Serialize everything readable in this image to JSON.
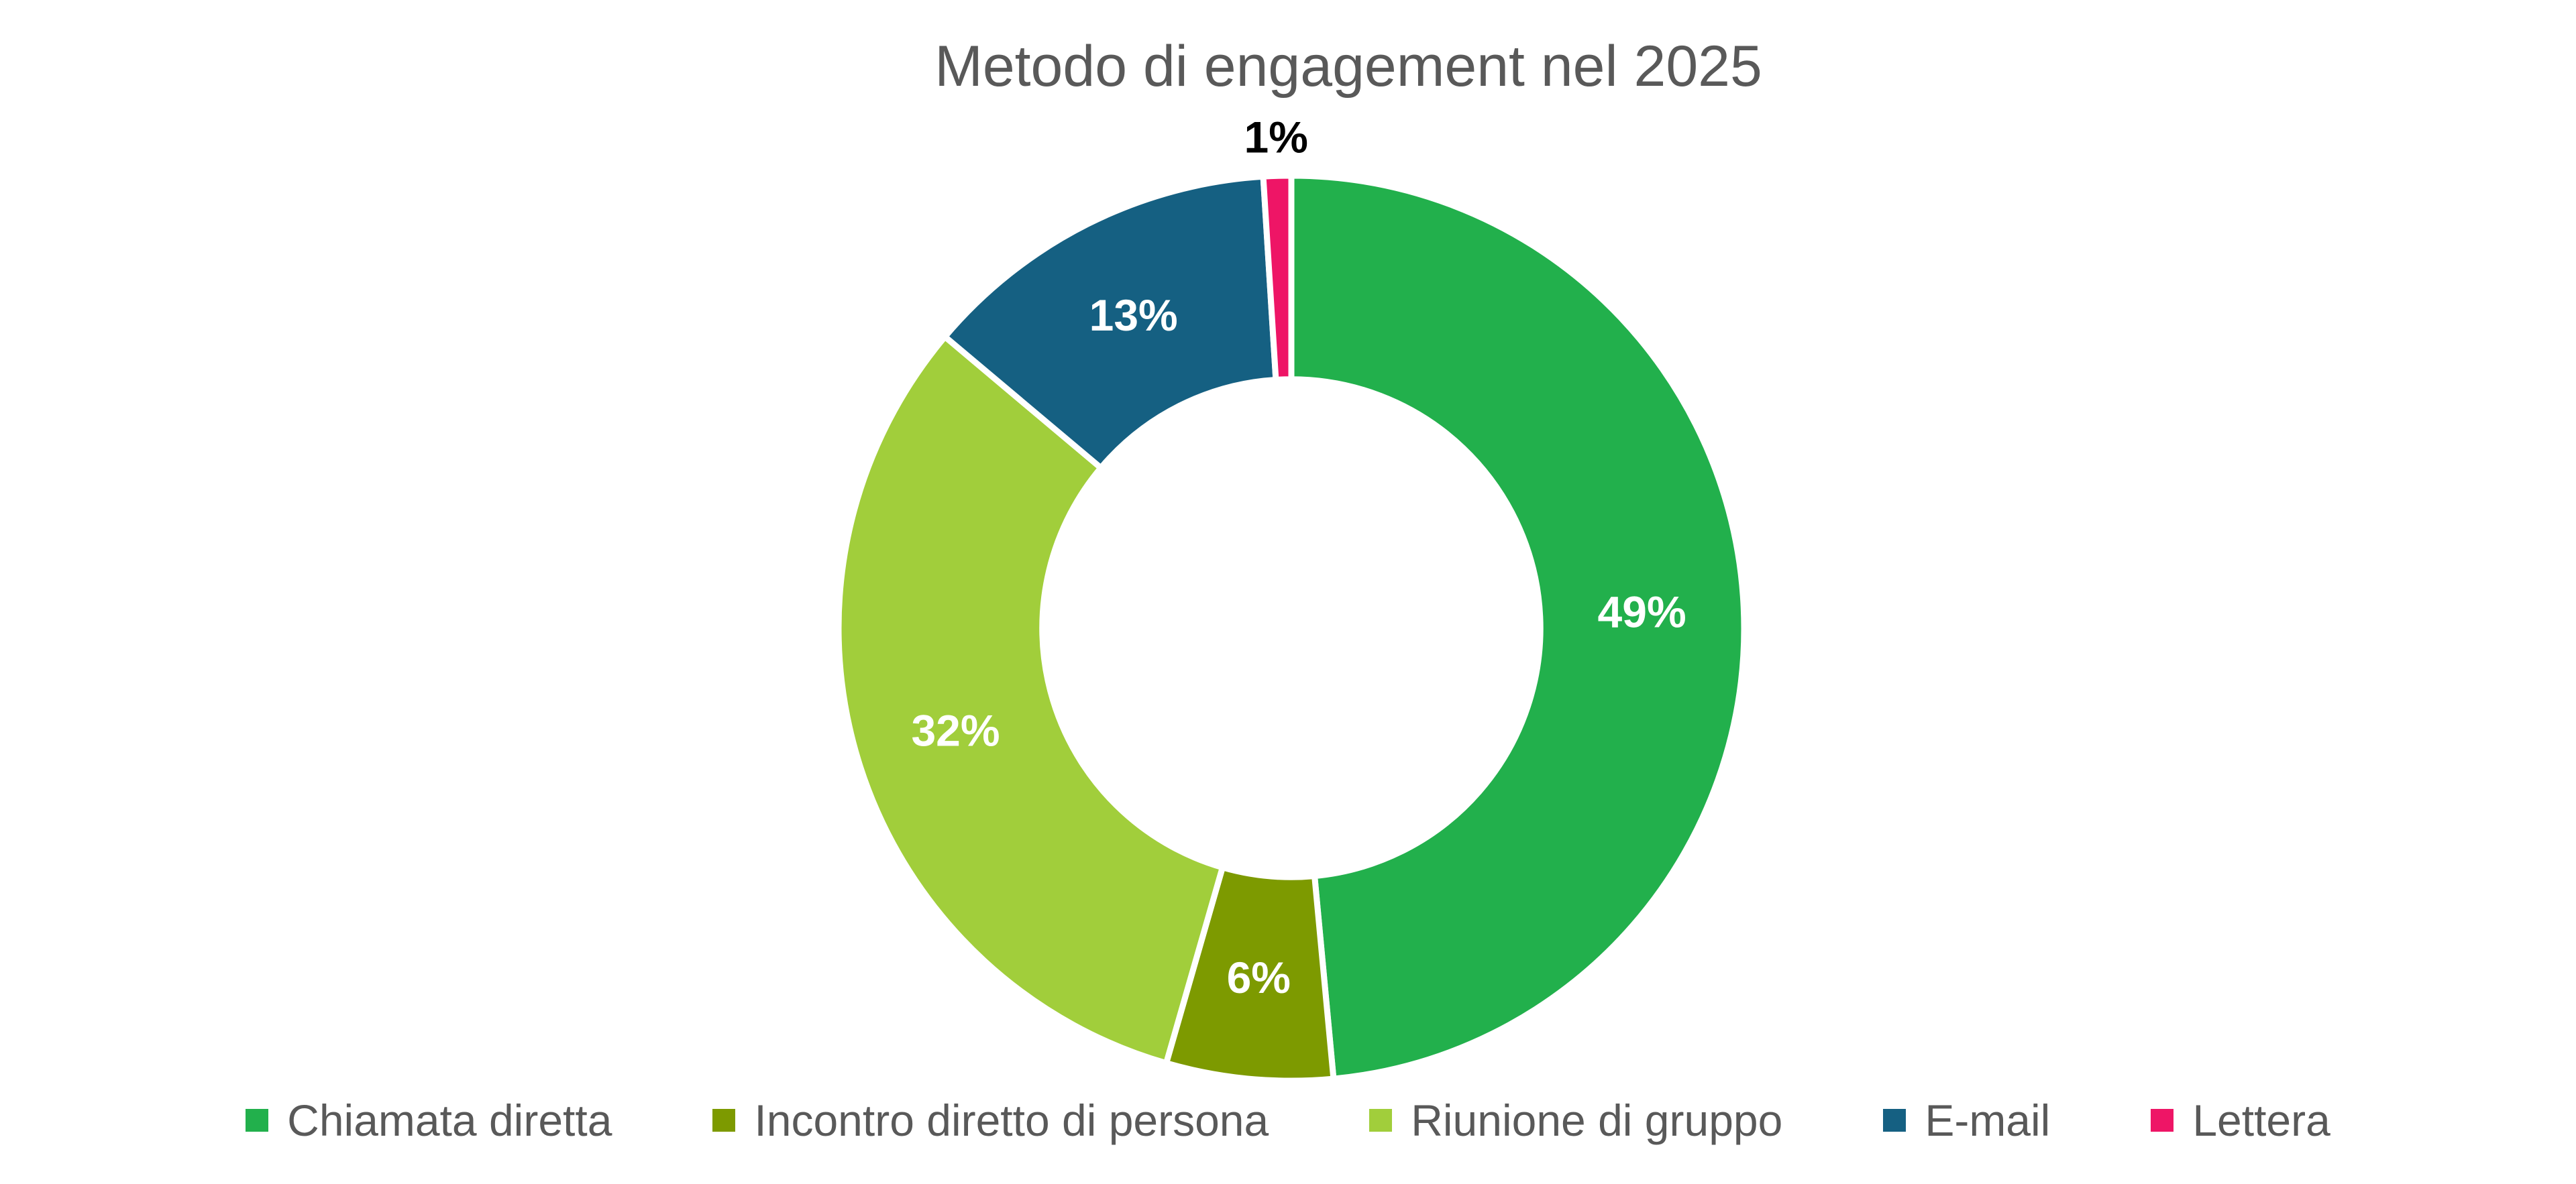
{
  "chart_data": {
    "type": "pie",
    "subtype": "donut",
    "title": "Metodo di engagement nel 2025",
    "title_color": "#595959",
    "background_color": "#ffffff",
    "legend_position": "bottom",
    "start_angle_deg": 0,
    "direction": "clockwise",
    "hole_ratio": 0.55,
    "separator_color": "#ffffff",
    "inside_label_color": "#ffffff",
    "slices": [
      {
        "label": "Chiamata diretta",
        "value": 49,
        "pct_label": "49%",
        "color": "#22B04C",
        "label_placement": "inside",
        "label_color": "#ffffff"
      },
      {
        "label": "Incontro diretto di persona",
        "value": 6,
        "pct_label": "6%",
        "color": "#7D9A00",
        "label_placement": "inside",
        "label_color": "#ffffff"
      },
      {
        "label": "Riunione di gruppo",
        "value": 32,
        "pct_label": "32%",
        "color": "#A1CE3B",
        "label_placement": "inside",
        "label_color": "#ffffff"
      },
      {
        "label": "E-mail",
        "value": 13,
        "pct_label": "13%",
        "color": "#156082",
        "label_placement": "inside",
        "label_color": "#ffffff"
      },
      {
        "label": "Lettera",
        "value": 1,
        "pct_label": "1%",
        "color": "#EE1566",
        "label_placement": "outside",
        "label_color": "#000000"
      }
    ]
  }
}
